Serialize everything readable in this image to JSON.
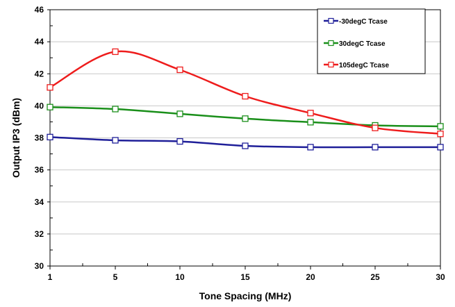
{
  "chart_data": {
    "type": "line",
    "xlabel": "Tone Spacing (MHz)",
    "ylabel": "Output IP3 (dBm)",
    "categories": [
      "1",
      "5",
      "10",
      "15",
      "20",
      "25",
      "30"
    ],
    "ylim": [
      30,
      46
    ],
    "yticks": [
      "30",
      "32",
      "34",
      "36",
      "38",
      "40",
      "42",
      "44",
      "46"
    ],
    "grid": "horizontal",
    "legend_position": "top-right",
    "series": [
      {
        "name": "-30degC Tcase",
        "color": "#1f1f99",
        "values": [
          38.05,
          37.85,
          37.78,
          37.5,
          37.42,
          37.42,
          37.42
        ]
      },
      {
        "name": "30degC Tcase",
        "color": "#1a8f1a",
        "values": [
          39.92,
          39.8,
          39.5,
          39.2,
          38.98,
          38.78,
          38.72
        ]
      },
      {
        "name": "105degC Tcase",
        "color": "#ee1c1c",
        "values": [
          41.15,
          43.38,
          42.25,
          40.6,
          39.55,
          38.62,
          38.25
        ]
      }
    ]
  }
}
